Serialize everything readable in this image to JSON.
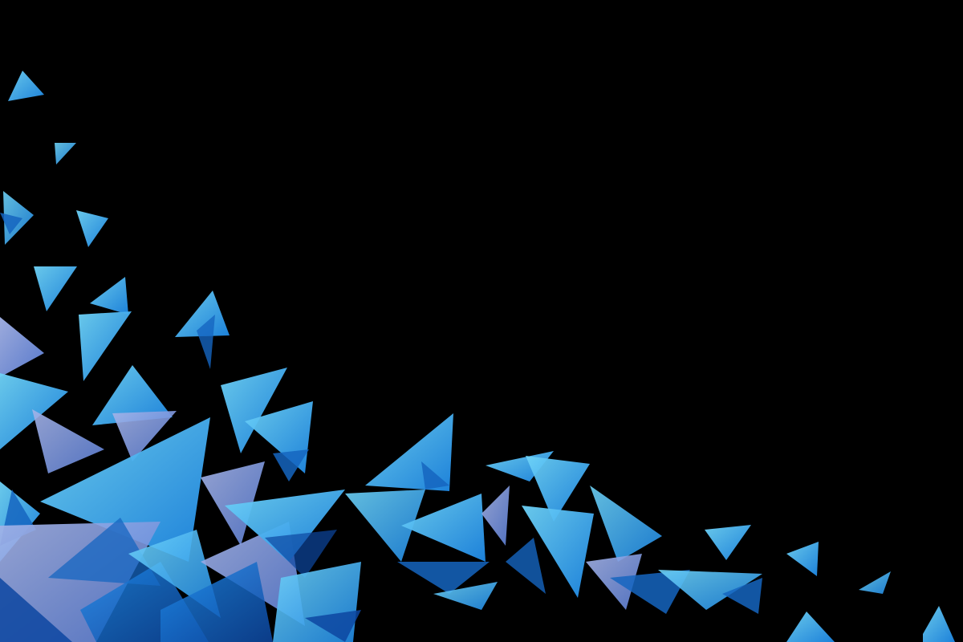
{
  "scene": {
    "background": "#000000",
    "description_visible_text": "",
    "palette": {
      "cyan": "#29b6f6",
      "sky": "#4fc3f7",
      "light": "#81d4fa",
      "azure": "#1e88e5",
      "royal": "#1565c0",
      "navy": "#0d47a1",
      "lavender": "#9fa8da",
      "periwinkle": "#7986cb"
    }
  }
}
